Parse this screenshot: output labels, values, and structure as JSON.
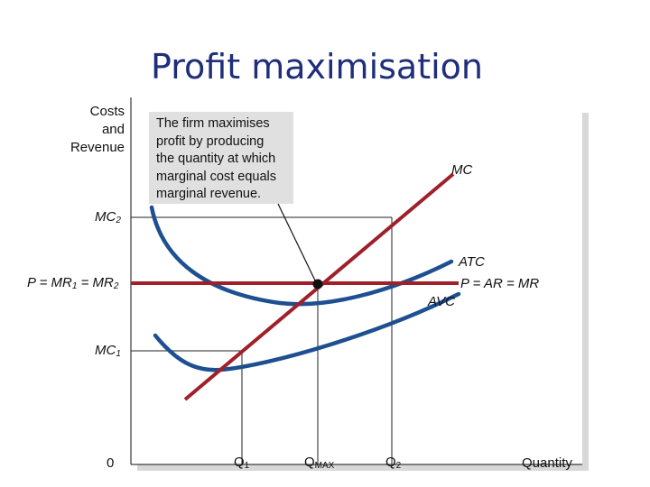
{
  "title": "Profit maximisation",
  "y_axis_label_line1": "Costs",
  "y_axis_label_line2": "and",
  "y_axis_label_line3": "Revenue",
  "x_axis_label": "Quantity",
  "origin_label": "0",
  "annotation_lines": [
    "The firm maximises",
    "profit by producing",
    "the quantity at which",
    "marginal cost equals",
    "marginal revenue."
  ],
  "curves": {
    "mc": "MC",
    "atc": "ATC",
    "avc": "AVC",
    "demand": "P = AR = MR"
  },
  "y_ticks": {
    "mc2": {
      "main": "MC",
      "sub": "2"
    },
    "price": {
      "p": "P = MR",
      "sub1": "1",
      "eq": " = MR",
      "sub2": "2"
    },
    "mc1": {
      "main": "MC",
      "sub": "1"
    }
  },
  "x_ticks": {
    "q1": {
      "main": "Q",
      "sub": "1"
    },
    "qmax": {
      "main": "Q",
      "sub": "MAX"
    },
    "q2": {
      "main": "Q",
      "sub": "2"
    }
  },
  "colors": {
    "title": "#1f2e7a",
    "mc_line": "#a0202a",
    "price_line": "#a0202a",
    "cost_curves": "#1d4f91",
    "annotation_bg": "#e0e0e0"
  }
}
